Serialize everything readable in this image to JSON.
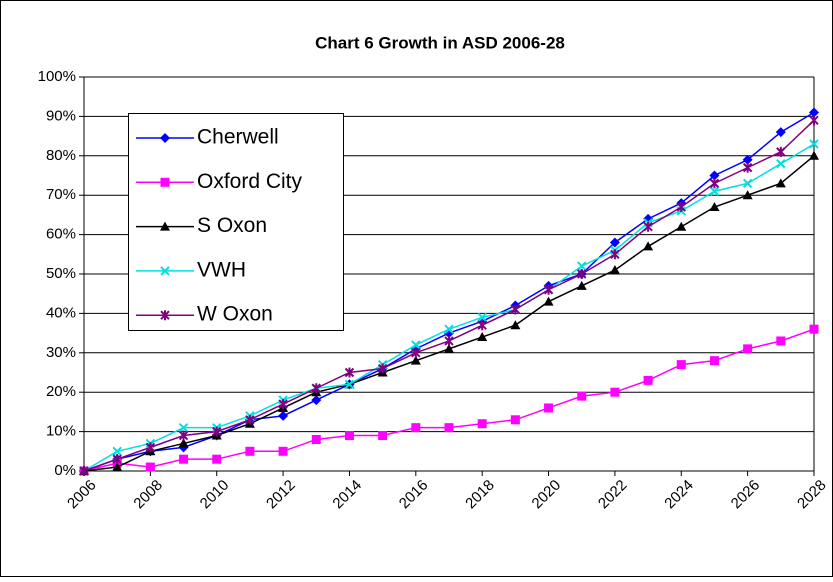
{
  "chart_data": {
    "type": "line",
    "title": "Chart 6 Growth in ASD 2006-28",
    "x": [
      2006,
      2007,
      2008,
      2009,
      2010,
      2011,
      2012,
      2013,
      2014,
      2015,
      2016,
      2017,
      2018,
      2019,
      2020,
      2021,
      2022,
      2023,
      2024,
      2025,
      2026,
      2027,
      2028
    ],
    "xlim": [
      2006,
      2028
    ],
    "xticks": [
      2006,
      2008,
      2010,
      2012,
      2014,
      2016,
      2018,
      2020,
      2022,
      2024,
      2026,
      2028
    ],
    "ylim": [
      0,
      100
    ],
    "yticks": [
      {
        "value": 0,
        "label": "0%"
      },
      {
        "value": 10,
        "label": "10%"
      },
      {
        "value": 20,
        "label": "20%"
      },
      {
        "value": 30,
        "label": "30%"
      },
      {
        "value": 40,
        "label": "40%"
      },
      {
        "value": 50,
        "label": "50%"
      },
      {
        "value": 60,
        "label": "60%"
      },
      {
        "value": 70,
        "label": "70%"
      },
      {
        "value": 80,
        "label": "80%"
      },
      {
        "value": 90,
        "label": "90%"
      },
      {
        "value": 100,
        "label": "100%"
      }
    ],
    "grid": true,
    "legend": "upper left",
    "series": [
      {
        "name": "Cherwell",
        "color": "#0000ff",
        "marker": "diamond",
        "values": [
          0,
          3,
          5,
          6,
          9,
          13,
          14,
          18,
          22,
          26,
          31,
          35,
          38,
          42,
          47,
          50,
          58,
          64,
          68,
          75,
          79,
          86,
          91
        ]
      },
      {
        "name": "Oxford City",
        "color": "#ff00ff",
        "marker": "square",
        "values": [
          0,
          2,
          1,
          3,
          3,
          5,
          5,
          8,
          9,
          9,
          11,
          11,
          12,
          13,
          16,
          19,
          20,
          23,
          27,
          28,
          31,
          33,
          36
        ]
      },
      {
        "name": "S Oxon",
        "color": "#000000",
        "marker": "triangle",
        "values": [
          0,
          1,
          5,
          7,
          9,
          12,
          16,
          20,
          22,
          25,
          28,
          31,
          34,
          37,
          43,
          47,
          51,
          57,
          62,
          67,
          70,
          73,
          80
        ]
      },
      {
        "name": "VWH",
        "color": "#00e0e0",
        "marker": "x",
        "values": [
          0,
          5,
          7,
          11,
          11,
          14,
          18,
          21,
          22,
          27,
          32,
          36,
          39,
          41,
          46,
          52,
          56,
          63,
          66,
          71,
          73,
          78,
          83
        ]
      },
      {
        "name": "W Oxon",
        "color": "#800080",
        "marker": "star",
        "values": [
          0,
          3,
          6,
          9,
          10,
          13,
          17,
          21,
          25,
          26,
          30,
          33,
          37,
          41,
          46,
          50,
          55,
          62,
          67,
          73,
          77,
          81,
          89
        ]
      }
    ]
  }
}
